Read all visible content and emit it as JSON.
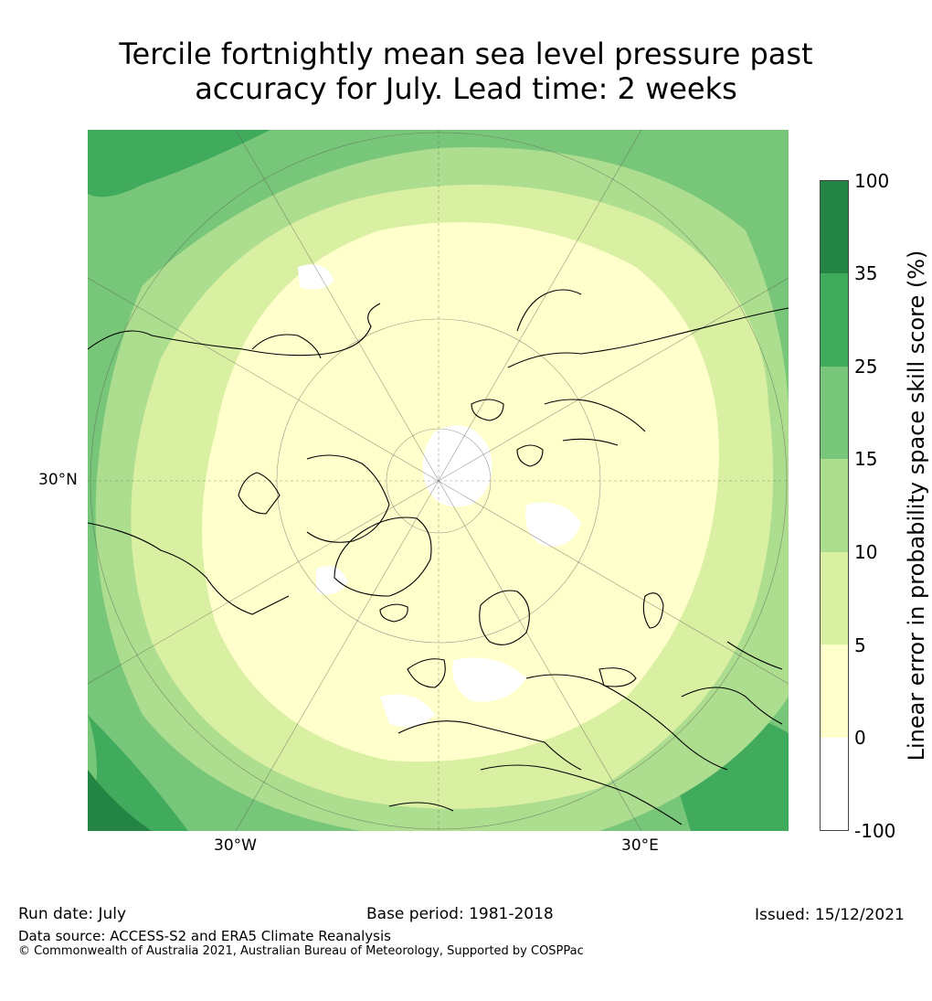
{
  "title": {
    "line1": "Tercile fortnightly mean sea level pressure past",
    "line2": "accuracy for July. Lead time: 2 weeks"
  },
  "map": {
    "projection": "north-polar-stereographic",
    "lat_label": "30°N",
    "lon_labels": {
      "west": "30°W",
      "east": "30°E"
    },
    "graticule": true,
    "coastlines": true
  },
  "colorbar": {
    "title": "Linear error in probability space skill score (%)",
    "ticks": [
      "100",
      "35",
      "25",
      "15",
      "10",
      "5",
      "0",
      "-100"
    ],
    "bins": [
      {
        "range": [
          35,
          100
        ],
        "color": "#238443"
      },
      {
        "range": [
          25,
          35
        ],
        "color": "#41ab5d"
      },
      {
        "range": [
          15,
          25
        ],
        "color": "#78c679"
      },
      {
        "range": [
          10,
          15
        ],
        "color": "#addd8e"
      },
      {
        "range": [
          5,
          10
        ],
        "color": "#d9f0a3"
      },
      {
        "range": [
          0,
          5
        ],
        "color": "#ffffcc"
      },
      {
        "range": [
          -100,
          0
        ],
        "color": "#ffffff"
      }
    ]
  },
  "footer": {
    "run_date": "Run date: July",
    "base_period": "Base period: 1981-2018",
    "issued": "Issued: 15/12/2021",
    "data_source": "Data source: ACCESS-S2 and ERA5 Climate Reanalysis",
    "copyright": "© Commonwealth of Australia 2021, Australian Bureau of Meteorology, Supported by COSPPac"
  }
}
